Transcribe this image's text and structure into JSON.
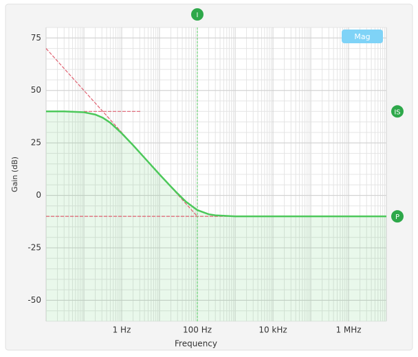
{
  "chart_data": {
    "type": "line",
    "xlabel": "Frequency",
    "ylabel": "Gain (dB)",
    "xscale": "log",
    "xlim": [
      0.01,
      10000000
    ],
    "ylim": [
      -60,
      80
    ],
    "xticks": [
      {
        "value": 1,
        "label": "1 Hz"
      },
      {
        "value": 100,
        "label": "100 Hz"
      },
      {
        "value": 10000,
        "label": "10 kHz"
      },
      {
        "value": 1000000,
        "label": "1 MHz"
      }
    ],
    "yticks": [
      75,
      50,
      25,
      0,
      -25,
      -50
    ],
    "grid": true,
    "series": [
      {
        "color": "#4cc85a",
        "x": [
          0.01,
          0.03,
          0.1,
          0.2,
          0.316,
          0.5,
          1,
          2,
          3,
          5,
          10,
          20,
          30,
          50,
          100,
          200,
          300,
          1000,
          10000,
          100000,
          1000000,
          10000000
        ],
        "values": [
          40.0,
          40.0,
          39.6,
          38.5,
          37.0,
          34.6,
          29.6,
          23.9,
          20.4,
          16.0,
          10.0,
          4.2,
          0.9,
          -3.0,
          -7.0,
          -9.0,
          -9.5,
          -10.0,
          -10.0,
          -10.0,
          -10.0,
          -10.0
        ]
      }
    ],
    "asymptotes": [
      {
        "color": "#e06070",
        "x": [
          0.01,
          100
        ],
        "values": [
          70,
          -10
        ]
      },
      {
        "color": "#e06070",
        "x": [
          0.1,
          3.162
        ],
        "values": [
          40,
          40
        ]
      },
      {
        "color": "#e06070",
        "x": [
          0.01,
          10000000
        ],
        "values": [
          -10,
          -10
        ]
      }
    ],
    "markers": [
      {
        "label": "I",
        "x": 100
      },
      {
        "label": "IS",
        "y": 40
      },
      {
        "label": "P",
        "y": -10
      }
    ],
    "button": "Mag"
  }
}
